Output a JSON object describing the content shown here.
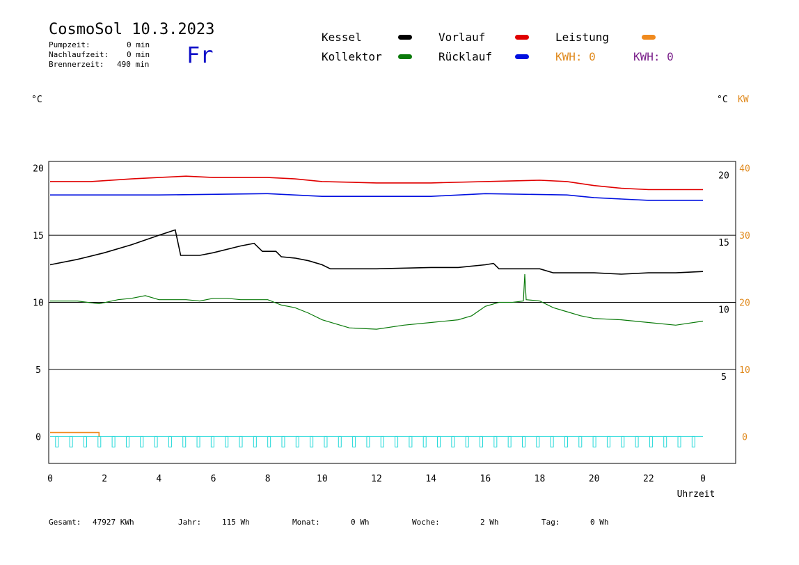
{
  "header": {
    "title": "CosmoSol 10.3.2023",
    "pump_label": "Pumpzeit:",
    "pump_value": "0 min",
    "nachlauf_label": "Nachlaufzeit:",
    "nachlauf_value": "0 min",
    "brenner_label": "Brennerzeit:",
    "brenner_value": "490 min",
    "day": "Fr"
  },
  "legend": {
    "kessel": "Kessel",
    "vorlauf": "Vorlauf",
    "leistung": "Leistung",
    "kollektor": "Kollektor",
    "ruecklauf": "Rücklauf",
    "kwh_orange": "KWH: 0",
    "kwh_purple": "KWH: 0"
  },
  "colors": {
    "kessel": "#000000",
    "vorlauf": "#e00000",
    "ruecklauf": "#0010e0",
    "kollektor": "#0a7a0a",
    "leistung": "#f08a1e",
    "purple": "#7a1f8a",
    "cyan": "#20d8d8"
  },
  "units": {
    "left": "°C",
    "right_c": "°C",
    "right_kw": "KW"
  },
  "footer": {
    "gesamt_label": "Gesamt:",
    "gesamt_value": "47927 KWh",
    "jahr_label": "Jahr:",
    "jahr_value": "115 Wh",
    "monat_label": "Monat:",
    "monat_value": "0 Wh",
    "woche_label": "Woche:",
    "woche_value": "2 Wh",
    "tag_label": "Tag:",
    "tag_value": "0 Wh"
  },
  "chart_data": {
    "type": "line",
    "xlabel": "Uhrzeit",
    "xlim": [
      0,
      24
    ],
    "ylim": [
      -2,
      20.5
    ],
    "x_tick_labels": [
      "0",
      "2",
      "4",
      "6",
      "8",
      "10",
      "12",
      "14",
      "16",
      "18",
      "20",
      "22",
      "0"
    ],
    "y_left_ticks": [
      0,
      5,
      10,
      15,
      20
    ],
    "y_right_c_ticks": [
      5,
      10,
      15,
      20
    ],
    "y_right_kw_ticks": [
      0,
      10,
      20,
      30,
      40
    ],
    "grid": "horizontal",
    "series": [
      {
        "name": "Vorlauf",
        "color": "#e00000",
        "points": [
          [
            0,
            19
          ],
          [
            1.5,
            19
          ],
          [
            3,
            19.2
          ],
          [
            4,
            19.3
          ],
          [
            5,
            19.4
          ],
          [
            6,
            19.3
          ],
          [
            8,
            19.3
          ],
          [
            9,
            19.2
          ],
          [
            10,
            19
          ],
          [
            12,
            18.9
          ],
          [
            14,
            18.9
          ],
          [
            16,
            19
          ],
          [
            18,
            19.1
          ],
          [
            19,
            19
          ],
          [
            20,
            18.7
          ],
          [
            21,
            18.5
          ],
          [
            22,
            18.4
          ],
          [
            24,
            18.4
          ]
        ]
      },
      {
        "name": "Rücklauf",
        "color": "#0010e0",
        "points": [
          [
            0,
            18
          ],
          [
            4,
            18
          ],
          [
            8,
            18.1
          ],
          [
            10,
            17.9
          ],
          [
            14,
            17.9
          ],
          [
            16,
            18.1
          ],
          [
            19,
            18
          ],
          [
            20,
            17.8
          ],
          [
            21,
            17.7
          ],
          [
            22,
            17.6
          ],
          [
            24,
            17.6
          ]
        ]
      },
      {
        "name": "Kessel",
        "color": "#000000",
        "points": [
          [
            0,
            12.8
          ],
          [
            1,
            13.2
          ],
          [
            2,
            13.7
          ],
          [
            3,
            14.3
          ],
          [
            4,
            15
          ],
          [
            4.6,
            15.4
          ],
          [
            4.8,
            13.5
          ],
          [
            5.5,
            13.5
          ],
          [
            6,
            13.7
          ],
          [
            7,
            14.2
          ],
          [
            7.5,
            14.4
          ],
          [
            7.8,
            13.8
          ],
          [
            8.3,
            13.8
          ],
          [
            8.5,
            13.4
          ],
          [
            9,
            13.3
          ],
          [
            9.5,
            13.1
          ],
          [
            10,
            12.8
          ],
          [
            10.3,
            12.5
          ],
          [
            12,
            12.5
          ],
          [
            14,
            12.6
          ],
          [
            15,
            12.6
          ],
          [
            16,
            12.8
          ],
          [
            16.3,
            12.9
          ],
          [
            16.5,
            12.5
          ],
          [
            18,
            12.5
          ],
          [
            18.5,
            12.2
          ],
          [
            20,
            12.2
          ],
          [
            21,
            12.1
          ],
          [
            22,
            12.2
          ],
          [
            23,
            12.2
          ],
          [
            24,
            12.3
          ]
        ]
      },
      {
        "name": "Kollektor",
        "color": "#0a7a0a",
        "points": [
          [
            0,
            10.1
          ],
          [
            1,
            10.1
          ],
          [
            1.8,
            9.9
          ],
          [
            2.5,
            10.2
          ],
          [
            3,
            10.3
          ],
          [
            3.5,
            10.5
          ],
          [
            4,
            10.2
          ],
          [
            5,
            10.2
          ],
          [
            5.5,
            10.1
          ],
          [
            6,
            10.3
          ],
          [
            6.5,
            10.3
          ],
          [
            7,
            10.2
          ],
          [
            8,
            10.2
          ],
          [
            8.5,
            9.8
          ],
          [
            9,
            9.6
          ],
          [
            9.5,
            9.2
          ],
          [
            10,
            8.7
          ],
          [
            10.5,
            8.4
          ],
          [
            11,
            8.1
          ],
          [
            12,
            8
          ],
          [
            13,
            8.3
          ],
          [
            14,
            8.5
          ],
          [
            15,
            8.7
          ],
          [
            15.5,
            9
          ],
          [
            16,
            9.7
          ],
          [
            16.5,
            10
          ],
          [
            17,
            10
          ],
          [
            17.4,
            10.1
          ],
          [
            17.45,
            12.1
          ],
          [
            17.5,
            10.2
          ],
          [
            18,
            10.1
          ],
          [
            18.5,
            9.6
          ],
          [
            19,
            9.3
          ],
          [
            19.5,
            9
          ],
          [
            20,
            8.8
          ],
          [
            21,
            8.7
          ],
          [
            22,
            8.5
          ],
          [
            23,
            8.3
          ],
          [
            24,
            8.6
          ]
        ]
      },
      {
        "name": "Leistung",
        "color": "#f08a1e",
        "points": [
          [
            0,
            0.3
          ],
          [
            1.8,
            0.3
          ],
          [
            1.8,
            0
          ]
        ]
      }
    ]
  }
}
